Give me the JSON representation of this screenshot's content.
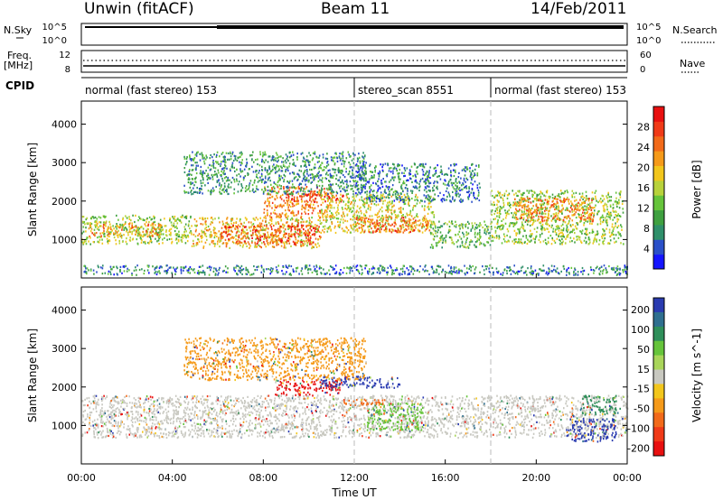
{
  "header": {
    "station": "Unwin (fitACF)",
    "beam": "Beam 11",
    "date": "14/Feb/2011"
  },
  "top_panels": {
    "nsky_label": "N.Sky",
    "nsky_ticks": [
      "10^5",
      "10^0"
    ],
    "nsearch_label": "N.Search",
    "nsearch_ticks": [
      "10^5",
      "10^0"
    ],
    "freq_label": "Freq.",
    "freq_unit": "[MHz]",
    "freq_ticks": [
      "12",
      "8"
    ],
    "nave_label": "Nave",
    "nave_ticks": [
      "60",
      "0"
    ],
    "cpid_label": "CPID"
  },
  "cpid_segments": [
    {
      "label": "normal (fast stereo) 153",
      "start": 0,
      "end": 12
    },
    {
      "label": "stereo_scan 8551",
      "start": 12,
      "end": 18
    },
    {
      "label": "normal (fast stereo) 153",
      "start": 18,
      "end": 24
    }
  ],
  "chart_data": [
    {
      "type": "heatmap",
      "title": "Power",
      "xlabel": "Time UT",
      "ylabel": "Slant Range [km]",
      "xlim": [
        0,
        24
      ],
      "ylim": [
        0,
        4600
      ],
      "x_ticks": [
        "00:00",
        "04:00",
        "08:00",
        "12:00",
        "16:00",
        "20:00",
        "00:00"
      ],
      "y_ticks": [
        "1000",
        "2000",
        "3000",
        "4000"
      ],
      "colorbar": {
        "label": "Power [dB]",
        "ticks": [
          "4",
          "8",
          "12",
          "16",
          "20",
          "24",
          "28"
        ],
        "range": [
          0,
          32
        ],
        "colors": [
          "#1515ff",
          "#2b50c8",
          "#2f8f6a",
          "#3fa040",
          "#66c43b",
          "#b8d23b",
          "#f2c61c",
          "#f59a1a",
          "#f26a1a",
          "#f03a18",
          "#e81010"
        ]
      },
      "regions": [
        {
          "t0": 0.0,
          "t1": 4.8,
          "r0": 900,
          "r1": 1650,
          "level": 0.45
        },
        {
          "t0": 0.3,
          "t1": 3.5,
          "r0": 1100,
          "r1": 1450,
          "level": 0.7
        },
        {
          "t0": 4.8,
          "t1": 10.5,
          "r0": 800,
          "r1": 1600,
          "level": 0.6
        },
        {
          "t0": 6.0,
          "t1": 10.5,
          "r0": 900,
          "r1": 1400,
          "level": 0.85
        },
        {
          "t0": 8.0,
          "t1": 11.0,
          "r0": 1600,
          "r1": 2400,
          "level": 0.75
        },
        {
          "t0": 9.0,
          "t1": 11.5,
          "r0": 2000,
          "r1": 2200,
          "level": 0.9
        },
        {
          "t0": 10.5,
          "t1": 15.5,
          "r0": 1200,
          "r1": 2200,
          "level": 0.55
        },
        {
          "t0": 12.0,
          "t1": 15.3,
          "r0": 1200,
          "r1": 1600,
          "level": 0.8
        },
        {
          "t0": 4.5,
          "t1": 12.5,
          "r0": 2200,
          "r1": 3300,
          "level": 0.25
        },
        {
          "t0": 12.0,
          "t1": 17.5,
          "r0": 2000,
          "r1": 3000,
          "level": 0.2
        },
        {
          "t0": 15.3,
          "t1": 18.0,
          "r0": 800,
          "r1": 1500,
          "level": 0.35
        },
        {
          "t0": 18.0,
          "t1": 23.8,
          "r0": 900,
          "r1": 2300,
          "level": 0.45
        },
        {
          "t0": 19.0,
          "t1": 22.5,
          "r0": 1500,
          "r1": 2100,
          "level": 0.75
        },
        {
          "t0": 0.0,
          "t1": 24.0,
          "r0": 100,
          "r1": 350,
          "level": 0.2
        }
      ]
    },
    {
      "type": "heatmap",
      "title": "Velocity",
      "xlabel": "Time UT",
      "ylabel": "Slant Range [km]",
      "xlim": [
        0,
        24
      ],
      "ylim": [
        0,
        4600
      ],
      "x_ticks": [
        "00:00",
        "04:00",
        "08:00",
        "12:00",
        "16:00",
        "20:00",
        "00:00"
      ],
      "y_ticks": [
        "1000",
        "2000",
        "3000",
        "4000"
      ],
      "colorbar": {
        "label": "Velocity [m s^-1]",
        "ticks": [
          "200",
          "100",
          "50",
          "15",
          "-15",
          "-50",
          "-100",
          "-200"
        ],
        "colors": [
          "#2a3bb0",
          "#2f6f8f",
          "#2f8f5a",
          "#66c43b",
          "#a9d55a",
          "#c8c8c0",
          "#f2c61c",
          "#f59a1a",
          "#f26a1a",
          "#f03a18",
          "#e81010"
        ]
      },
      "regions": [
        {
          "t0": 0.0,
          "t1": 24.0,
          "r0": 700,
          "r1": 1800,
          "color": "#c8c8c0"
        },
        {
          "t0": 8.5,
          "t1": 11.5,
          "r0": 1800,
          "r1": 2200,
          "color": "#e81010"
        },
        {
          "t0": 10.5,
          "t1": 14.0,
          "r0": 2000,
          "r1": 2300,
          "color": "#2a3bb0"
        },
        {
          "t0": 12.5,
          "t1": 15.0,
          "r0": 900,
          "r1": 1600,
          "color": "#66c43b"
        },
        {
          "t0": 11.5,
          "t1": 13.5,
          "r0": 1550,
          "r1": 1700,
          "color": "#f26a1a"
        },
        {
          "t0": 4.5,
          "t1": 12.5,
          "r0": 2200,
          "r1": 3300,
          "color": "#f59a1a"
        },
        {
          "t0": 21.3,
          "t1": 23.5,
          "r0": 600,
          "r1": 1200,
          "color": "#2a3bb0"
        },
        {
          "t0": 22.0,
          "t1": 23.5,
          "r0": 1300,
          "r1": 1800,
          "color": "#2f8f5a"
        }
      ]
    }
  ]
}
